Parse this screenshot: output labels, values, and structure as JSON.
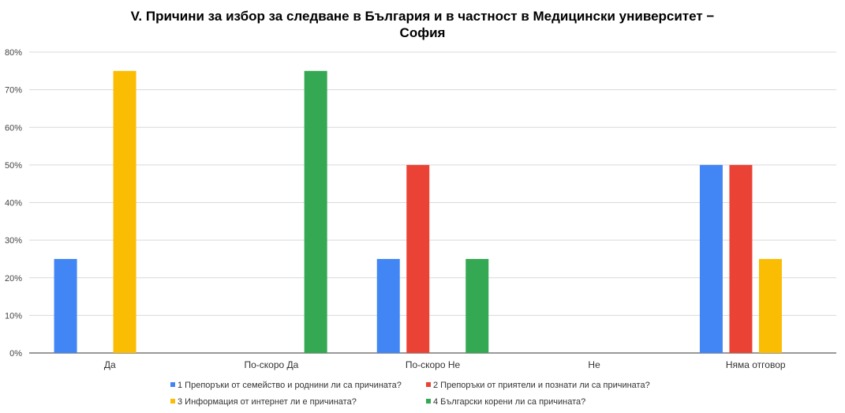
{
  "chart_data": {
    "type": "bar",
    "title": "V. Причини за избор за следване в България и в частност в Медицински университет – София",
    "title_lines": [
      "V. Причини за избор за следване в България и в частност в Медицински университет −",
      "София"
    ],
    "xlabel": "",
    "ylabel": "",
    "categories": [
      "Да",
      "По-скоро Да",
      "По-скоро Не",
      "Не",
      "Няма отговор"
    ],
    "ylim": [
      0,
      80
    ],
    "yticks": [
      "0%",
      "10%",
      "20%",
      "30%",
      "40%",
      "50%",
      "60%",
      "70%",
      "80%"
    ],
    "grid": true,
    "legend_position": "bottom",
    "series": [
      {
        "name": "1 Препоръки от семейство и роднини ли са причината?",
        "color": "#4285f4",
        "values": [
          25,
          0,
          25,
          0,
          50
        ]
      },
      {
        "name": "2 Препоръки от приятели и познати ли са причината?",
        "color": "#ea4335",
        "values": [
          0,
          0,
          50,
          0,
          50
        ]
      },
      {
        "name": "3 Информация от интернет ли е причината?",
        "color": "#fbbc04",
        "values": [
          75,
          0,
          0,
          0,
          25
        ]
      },
      {
        "name": "4 Български корени ли са причината?",
        "color": "#34a853",
        "values": [
          0,
          75,
          25,
          0,
          0
        ]
      }
    ]
  }
}
